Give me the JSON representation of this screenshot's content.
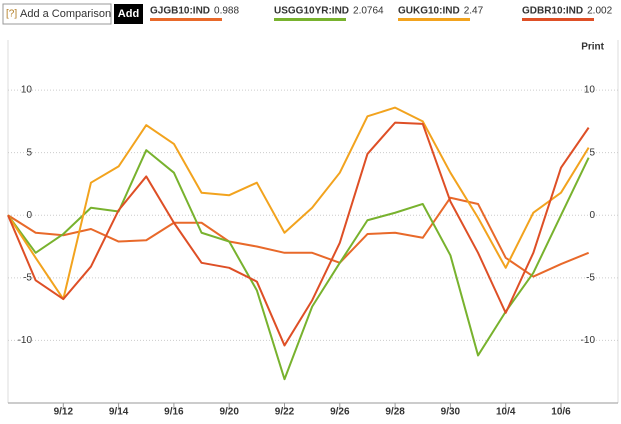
{
  "toolbar": {
    "help": "[?]",
    "placeholder": "Add a Comparison",
    "button": "Add",
    "print": "Print"
  },
  "chart_data": {
    "type": "line",
    "categories": [
      null,
      null,
      "9/12",
      null,
      "9/14",
      null,
      "9/16",
      null,
      "9/20",
      null,
      "9/22",
      null,
      "9/26",
      null,
      "9/28",
      null,
      "9/30",
      null,
      "10/4",
      null,
      "10/6",
      null
    ],
    "series": [
      {
        "name": "GJGB10:IND",
        "last": 0.988,
        "color": "#e8692a",
        "values": [
          0,
          -1.4,
          -1.6,
          -1.1,
          -2.1,
          -2,
          -0.6,
          -0.6,
          -2.1,
          -2.5,
          -3,
          -3,
          -3.8,
          -1.5,
          -1.4,
          -1.8,
          1.4,
          0.9,
          -3.4,
          -4.9,
          -3.9,
          -3
        ]
      },
      {
        "name": "USGG10YR:IND",
        "last": 2.0764,
        "color": "#78b22e",
        "values": [
          0,
          -3,
          -1.5,
          0.6,
          0.3,
          5.2,
          3.4,
          -1.4,
          -2.1,
          -6,
          -13.1,
          -7.3,
          -3.8,
          -0.4,
          0.2,
          0.9,
          -3.2,
          -11.2,
          -7.7,
          -4.6,
          0,
          4.6
        ]
      },
      {
        "name": "GUKG10:IND",
        "last": 2.47,
        "color": "#f2a31e",
        "values": [
          0,
          -3.4,
          -6.7,
          2.6,
          3.9,
          7.2,
          5.7,
          1.8,
          1.6,
          2.6,
          -1.4,
          0.6,
          3.4,
          7.9,
          8.6,
          7.5,
          3.4,
          -0.2,
          -4.2,
          0.2,
          1.8,
          5.4
        ]
      },
      {
        "name": "GDBR10:IND",
        "last": 2.002,
        "color": "#de4f26",
        "values": [
          0,
          -5.2,
          -6.7,
          -4.1,
          0.4,
          3.1,
          -0.6,
          -3.8,
          -4.2,
          -5.3,
          -10.4,
          -6.8,
          -2.2,
          4.9,
          7.4,
          7.3,
          1.1,
          -3,
          -7.8,
          -3,
          3.8,
          7
        ]
      }
    ],
    "ylim": [
      -15,
      14
    ],
    "yticks": [
      10,
      5,
      0,
      -5,
      -10
    ],
    "grid": true
  }
}
